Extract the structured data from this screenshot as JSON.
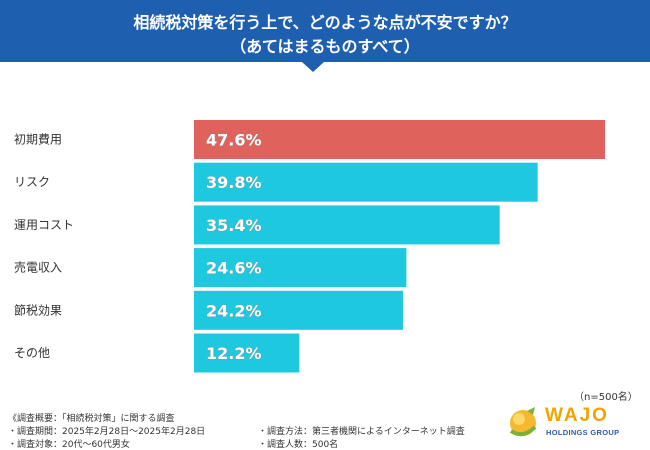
{
  "header": {
    "title_line1": "相続税対策を行う上で、どのような点が不安ですか？",
    "title_line2": "（あてはまるものすべて）",
    "bg_color": "#1f5fb0"
  },
  "chart_data": {
    "type": "bar",
    "orientation": "horizontal",
    "categories": [
      "初期費用",
      "リスク",
      "運用コスト",
      "売電収入",
      "節税効果",
      "その他"
    ],
    "values": [
      47.6,
      39.8,
      35.4,
      24.6,
      24.2,
      12.2
    ],
    "value_labels": [
      "47.6%",
      "39.8%",
      "35.4%",
      "24.6%",
      "24.2%",
      "12.2%"
    ],
    "unit": "%",
    "colors": [
      "#e0625c",
      "#1ec8df",
      "#1ec8df",
      "#1ec8df",
      "#1ec8df",
      "#1ec8df"
    ],
    "xlim": [
      0,
      47.6
    ],
    "grid": false,
    "legend": "none"
  },
  "sample": "（n=500名）",
  "notes": {
    "overview": "《調査概要：「相続税対策」に関する調査",
    "period": "・調査期間：2025年2月28日～2025年2月28日",
    "target": "・調査対象：20代～60代男女",
    "method": "・調査方法：第三者機関によるインターネット調査",
    "count": "・調査人数：500名"
  },
  "logo": {
    "name": "WAJO",
    "subtitle": "HOLDINGS GROUP",
    "text_color": "#f0a400",
    "sub_color": "#2b5fa8"
  }
}
